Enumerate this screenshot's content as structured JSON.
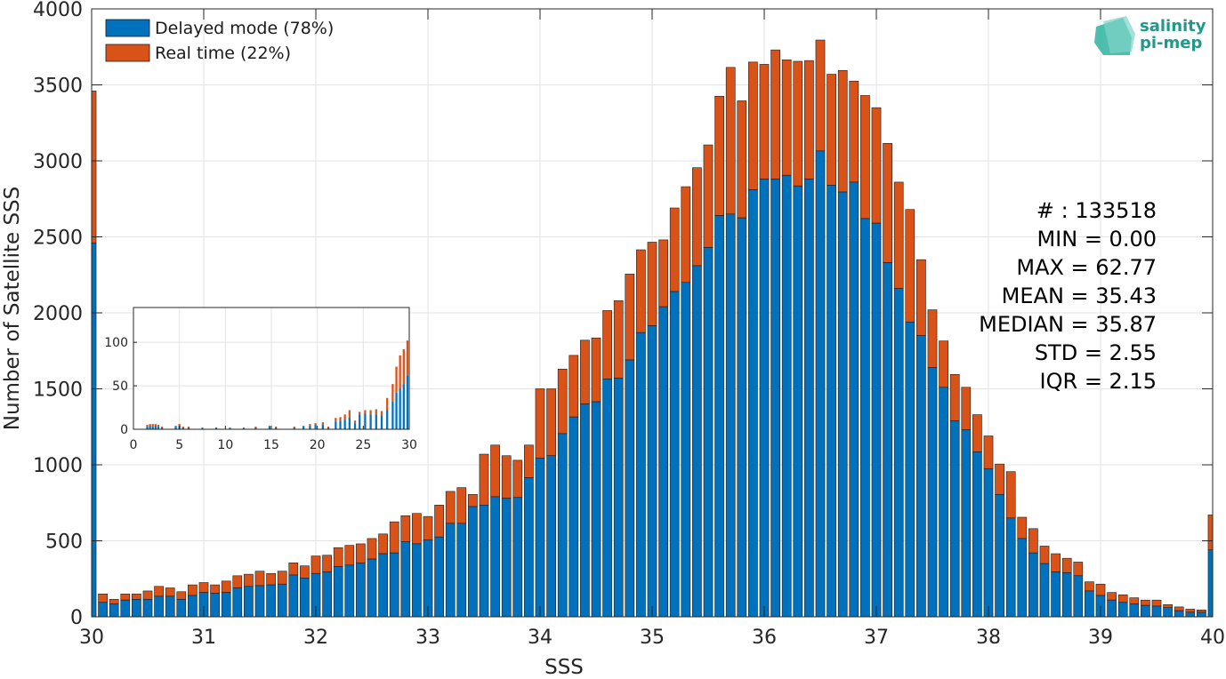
{
  "logo": {
    "line1": "salinity",
    "line2": "pi-mep",
    "color": "#1f9a8a"
  },
  "chart_data": [
    {
      "type": "bar",
      "stacked": true,
      "xlabel": "SSS",
      "ylabel": "Number of Satellite SSS",
      "xlim": [
        30,
        40
      ],
      "ylim": [
        0,
        4000
      ],
      "xticks": [
        30,
        31,
        32,
        33,
        34,
        35,
        36,
        37,
        38,
        39,
        40
      ],
      "yticks": [
        0,
        500,
        1000,
        1500,
        2000,
        2500,
        3000,
        3500,
        4000
      ],
      "grid": true,
      "legend_position": "top-left",
      "bin_width": 0.1,
      "x": [
        30.0,
        30.1,
        30.2,
        30.3,
        30.4,
        30.5,
        30.6,
        30.7,
        30.8,
        30.9,
        31.0,
        31.1,
        31.2,
        31.3,
        31.4,
        31.5,
        31.6,
        31.7,
        31.8,
        31.9,
        32.0,
        32.1,
        32.2,
        32.3,
        32.4,
        32.5,
        32.6,
        32.7,
        32.8,
        32.9,
        33.0,
        33.1,
        33.2,
        33.3,
        33.4,
        33.5,
        33.6,
        33.7,
        33.8,
        33.9,
        34.0,
        34.1,
        34.2,
        34.3,
        34.4,
        34.5,
        34.6,
        34.7,
        34.8,
        34.9,
        35.0,
        35.1,
        35.2,
        35.3,
        35.4,
        35.5,
        35.6,
        35.7,
        35.8,
        35.9,
        36.0,
        36.1,
        36.2,
        36.3,
        36.4,
        36.5,
        36.6,
        36.7,
        36.8,
        36.9,
        37.0,
        37.1,
        37.2,
        37.3,
        37.4,
        37.5,
        37.6,
        37.7,
        37.8,
        37.9,
        38.0,
        38.1,
        38.2,
        38.3,
        38.4,
        38.5,
        38.6,
        38.7,
        38.8,
        38.9,
        39.0,
        39.1,
        39.2,
        39.3,
        39.4,
        39.5,
        39.6,
        39.7,
        39.8,
        39.9,
        40.0
      ],
      "series": [
        {
          "name": "Delayed mode (78%)",
          "color": "#0072BD",
          "values": [
            2460,
            95,
            85,
            110,
            115,
            115,
            135,
            135,
            115,
            140,
            160,
            155,
            160,
            190,
            200,
            205,
            210,
            215,
            275,
            255,
            285,
            295,
            330,
            340,
            355,
            380,
            415,
            420,
            495,
            480,
            505,
            525,
            615,
            615,
            725,
            735,
            790,
            780,
            785,
            915,
            1045,
            1060,
            1205,
            1315,
            1400,
            1415,
            1565,
            1570,
            1690,
            1870,
            1915,
            2040,
            2140,
            2200,
            2310,
            2430,
            2640,
            2650,
            2625,
            2810,
            2880,
            2880,
            2905,
            2835,
            2880,
            3065,
            2840,
            2795,
            2860,
            2620,
            2590,
            2330,
            2160,
            1940,
            1850,
            1640,
            1510,
            1290,
            1230,
            1085,
            975,
            805,
            650,
            515,
            420,
            350,
            295,
            290,
            270,
            170,
            140,
            110,
            95,
            85,
            75,
            70,
            60,
            40,
            30,
            30,
            440
          ]
        },
        {
          "name": "Real time (22%)",
          "color": "#D95319",
          "values": [
            1000,
            55,
            30,
            40,
            35,
            55,
            65,
            55,
            50,
            70,
            65,
            55,
            75,
            80,
            80,
            95,
            75,
            85,
            80,
            80,
            115,
            110,
            125,
            130,
            125,
            135,
            130,
            205,
            170,
            200,
            155,
            210,
            210,
            235,
            80,
            335,
            340,
            280,
            245,
            215,
            455,
            440,
            425,
            405,
            420,
            420,
            450,
            510,
            565,
            545,
            550,
            440,
            550,
            630,
            645,
            675,
            785,
            965,
            770,
            840,
            755,
            850,
            760,
            820,
            780,
            730,
            730,
            800,
            665,
            810,
            760,
            785,
            700,
            740,
            500,
            380,
            305,
            305,
            280,
            245,
            215,
            200,
            305,
            140,
            160,
            115,
            120,
            95,
            90,
            60,
            75,
            50,
            50,
            40,
            35,
            40,
            20,
            25,
            20,
            15,
            230
          ]
        }
      ],
      "stats": [
        "# : 133518",
        "MIN = 0.00",
        "MAX =  62.77",
        "MEAN = 35.43",
        "MEDIAN = 35.87",
        "STD = 2.55",
        "IQR = 2.15"
      ]
    },
    {
      "type": "bar",
      "stacked": true,
      "inset": true,
      "xlim": [
        0,
        30
      ],
      "ylim": [
        0,
        140
      ],
      "xticks": [
        0,
        5,
        10,
        15,
        20,
        25,
        30
      ],
      "yticks": [
        0,
        50,
        100
      ],
      "grid": true,
      "bin_width": 0.1,
      "series": [
        {
          "name": "Delayed mode",
          "color": "#0072BD",
          "points": [
            [
              1.5,
              3
            ],
            [
              1.8,
              4
            ],
            [
              2.1,
              3
            ],
            [
              2.4,
              4
            ],
            [
              2.7,
              3
            ],
            [
              3.1,
              2
            ],
            [
              4.6,
              3
            ],
            [
              5.0,
              4
            ],
            [
              5.4,
              2
            ],
            [
              6.0,
              2
            ],
            [
              7.5,
              1
            ],
            [
              9.0,
              2
            ],
            [
              10.5,
              1
            ],
            [
              12.0,
              1
            ],
            [
              13.3,
              2
            ],
            [
              14.8,
              3
            ],
            [
              15.5,
              2
            ],
            [
              17.5,
              2
            ],
            [
              18.5,
              3
            ],
            [
              19.2,
              4
            ],
            [
              19.8,
              5
            ],
            [
              20.6,
              5
            ],
            [
              21.2,
              2
            ],
            [
              22.0,
              9
            ],
            [
              22.5,
              10
            ],
            [
              23.0,
              11
            ],
            [
              23.5,
              14
            ],
            [
              24.1,
              7
            ],
            [
              24.6,
              17
            ],
            [
              25.2,
              18
            ],
            [
              25.8,
              17
            ],
            [
              26.4,
              17
            ],
            [
              27.0,
              16
            ],
            [
              27.6,
              22
            ],
            [
              28.2,
              32
            ],
            [
              28.6,
              42
            ],
            [
              29.0,
              47
            ],
            [
              29.4,
              52
            ],
            [
              29.8,
              62
            ]
          ]
        },
        {
          "name": "Real time",
          "color": "#D95319",
          "points": [
            [
              1.5,
              2
            ],
            [
              1.8,
              2
            ],
            [
              2.1,
              3
            ],
            [
              2.4,
              2
            ],
            [
              2.7,
              2
            ],
            [
              3.1,
              1
            ],
            [
              4.6,
              1
            ],
            [
              5.0,
              2
            ],
            [
              5.4,
              1
            ],
            [
              6.0,
              1
            ],
            [
              7.5,
              1
            ],
            [
              9.0,
              0
            ],
            [
              10.5,
              1
            ],
            [
              12.0,
              1
            ],
            [
              13.3,
              1
            ],
            [
              14.8,
              1
            ],
            [
              15.5,
              1
            ],
            [
              17.5,
              1
            ],
            [
              18.5,
              1
            ],
            [
              19.2,
              2
            ],
            [
              19.8,
              2
            ],
            [
              20.6,
              3
            ],
            [
              21.2,
              1
            ],
            [
              22.0,
              4
            ],
            [
              22.5,
              4
            ],
            [
              23.0,
              6
            ],
            [
              23.5,
              8
            ],
            [
              24.1,
              3
            ],
            [
              24.6,
              3
            ],
            [
              25.2,
              4
            ],
            [
              25.8,
              5
            ],
            [
              26.4,
              6
            ],
            [
              27.0,
              5
            ],
            [
              27.6,
              14
            ],
            [
              28.2,
              20
            ],
            [
              28.6,
              30
            ],
            [
              29.0,
              38
            ],
            [
              29.4,
              40
            ],
            [
              29.8,
              40
            ]
          ]
        }
      ]
    }
  ]
}
